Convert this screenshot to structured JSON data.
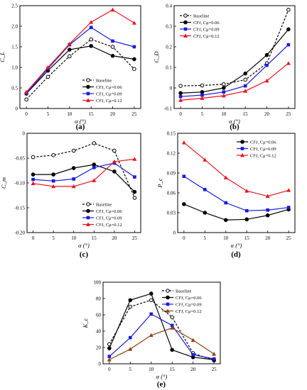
{
  "chart_data": [
    {
      "type": "line",
      "panel_label": "(a)",
      "xlabel": "α (°)",
      "ylabel": "C_L",
      "x": [
        0,
        5,
        10,
        15,
        20,
        25
      ],
      "xlim": [
        -1.5,
        26.5
      ],
      "ylim": [
        0,
        2.5
      ],
      "yticks": [
        "0",
        "0.5",
        "1.0",
        "1.5",
        "2.0",
        "2.5"
      ],
      "xticks": [
        "0",
        "5",
        "10",
        "15",
        "20",
        "25"
      ],
      "legend_position": "bottom-right",
      "series": [
        {
          "name": "Baseline",
          "values": [
            0.22,
            0.77,
            1.27,
            1.68,
            1.5,
            0.96
          ],
          "color": "#000000",
          "dashed": true,
          "marker": "circle-open"
        },
        {
          "name": "CFJ, Cμ=0.06",
          "values": [
            0.36,
            0.92,
            1.43,
            1.52,
            1.28,
            1.2
          ],
          "color": "#000000",
          "dashed": false,
          "marker": "circle"
        },
        {
          "name": "CFJ, Cμ=0.09",
          "values": [
            0.37,
            0.97,
            1.55,
            1.97,
            1.64,
            1.5
          ],
          "color": "#1a1adc",
          "dashed": false,
          "marker": "square"
        },
        {
          "name": "CFJ, Cμ=0.12",
          "values": [
            0.4,
            1.0,
            1.57,
            2.1,
            2.4,
            2.08
          ],
          "color": "#e8141e",
          "dashed": false,
          "marker": "triangle"
        }
      ]
    },
    {
      "type": "line",
      "panel_label": "(b)",
      "xlabel": "α (°)",
      "ylabel": "C_D",
      "x": [
        0,
        5,
        10,
        15,
        20,
        25
      ],
      "xlim": [
        -1.5,
        26.5
      ],
      "ylim": [
        -0.1,
        0.4
      ],
      "yticks": [
        "-0.1",
        "0",
        "0.1",
        "0.2",
        "0.3",
        "0.4"
      ],
      "xticks": [
        "0",
        "5",
        "10",
        "15",
        "20",
        "25"
      ],
      "legend_position": "top-left",
      "series": [
        {
          "name": "Baseline",
          "values": [
            0.01,
            0.012,
            0.018,
            0.04,
            0.12,
            0.38
          ],
          "color": "#000000",
          "dashed": true,
          "marker": "circle-open"
        },
        {
          "name": "CFJ, Cμ=0.06",
          "values": [
            -0.025,
            -0.02,
            0.0,
            0.07,
            0.16,
            0.285
          ],
          "color": "#000000",
          "dashed": false,
          "marker": "circle"
        },
        {
          "name": "CFJ, Cμ=0.09",
          "values": [
            -0.042,
            -0.035,
            -0.02,
            0.01,
            0.11,
            0.21
          ],
          "color": "#1a1adc",
          "dashed": false,
          "marker": "square"
        },
        {
          "name": "CFJ, Cμ=0.12",
          "values": [
            -0.06,
            -0.05,
            -0.038,
            -0.015,
            0.035,
            0.12
          ],
          "color": "#e8141e",
          "dashed": false,
          "marker": "triangle"
        }
      ]
    },
    {
      "type": "line",
      "panel_label": "(c)",
      "xlabel": "α (°)",
      "ylabel": "C_m",
      "x": [
        0,
        5,
        10,
        15,
        20,
        25
      ],
      "xlim": [
        -1.5,
        26.5
      ],
      "ylim": [
        -0.2,
        0
      ],
      "yticks": [
        "-0.20",
        "-0.15",
        "-0.10",
        "-0.05",
        "0"
      ],
      "xticks": [
        "0",
        "5",
        "10",
        "15",
        "20",
        "25"
      ],
      "legend_position": "bottom-right",
      "series": [
        {
          "name": "Baseline",
          "values": [
            -0.048,
            -0.044,
            -0.035,
            -0.02,
            -0.035,
            -0.13
          ],
          "color": "#000000",
          "dashed": true,
          "marker": "circle-open"
        },
        {
          "name": "CFJ, Cμ=0.06",
          "values": [
            -0.083,
            -0.083,
            -0.07,
            -0.063,
            -0.077,
            -0.118
          ],
          "color": "#000000",
          "dashed": false,
          "marker": "circle"
        },
        {
          "name": "CFJ, Cμ=0.09",
          "values": [
            -0.093,
            -0.096,
            -0.092,
            -0.069,
            -0.06,
            -0.088
          ],
          "color": "#1a1adc",
          "dashed": false,
          "marker": "square"
        },
        {
          "name": "CFJ, Cμ=0.12",
          "values": [
            -0.101,
            -0.107,
            -0.107,
            -0.095,
            -0.057,
            -0.052
          ],
          "color": "#e8141e",
          "dashed": false,
          "marker": "triangle"
        }
      ]
    },
    {
      "type": "line",
      "panel_label": "(d)",
      "xlabel": "α (°)",
      "ylabel": "P_c",
      "x": [
        0,
        5,
        10,
        15,
        20,
        25
      ],
      "xlim": [
        -1.5,
        26.5
      ],
      "ylim": [
        0,
        0.15
      ],
      "yticks": [
        "0",
        "0.03",
        "0.06",
        "0.09",
        "0.12",
        "0.15"
      ],
      "xticks": [
        "0",
        "5",
        "10",
        "15",
        "20",
        "25"
      ],
      "legend_position": "top-right",
      "series": [
        {
          "name": "CFJ, Cμ=0.06",
          "values": [
            0.043,
            0.03,
            0.019,
            0.02,
            0.026,
            0.035
          ],
          "color": "#000000",
          "dashed": false,
          "marker": "circle"
        },
        {
          "name": "CFJ, Cμ=0.09",
          "values": [
            0.085,
            0.065,
            0.045,
            0.033,
            0.034,
            0.038
          ],
          "color": "#1a1adc",
          "dashed": false,
          "marker": "square"
        },
        {
          "name": "CFJ, Cμ=0.12",
          "values": [
            0.136,
            0.11,
            0.083,
            0.063,
            0.055,
            0.064
          ],
          "color": "#e8141e",
          "dashed": false,
          "marker": "triangle"
        }
      ]
    },
    {
      "type": "line",
      "panel_label": "(e)",
      "xlabel": "α (°)",
      "ylabel": "K_c",
      "x": [
        0,
        5,
        10,
        15,
        20,
        25
      ],
      "xlim": [
        -1.5,
        26.5
      ],
      "ylim": [
        0,
        100
      ],
      "yticks": [
        "0",
        "20",
        "40",
        "60",
        "80",
        "100"
      ],
      "xticks": [
        "0",
        "5",
        "10",
        "15",
        "20",
        "25"
      ],
      "legend_position": "top-right",
      "series": [
        {
          "name": "Baseline",
          "values": [
            24,
            70,
            78,
            57,
            13,
            4
          ],
          "color": "#000000",
          "dashed": true,
          "marker": "circle-open"
        },
        {
          "name": "CFJ, Cμ=0.06",
          "values": [
            19,
            78,
            86,
            17,
            8,
            5
          ],
          "color": "#000000",
          "dashed": false,
          "marker": "circle"
        },
        {
          "name": "CFJ, Cμ=0.09",
          "values": [
            9,
            32,
            61,
            47,
            11,
            6
          ],
          "color": "#1a1adc",
          "dashed": false,
          "marker": "square"
        },
        {
          "name": "CFJ, Cμ=0.12",
          "values": [
            5,
            18,
            35,
            44,
            29,
            12
          ],
          "color": "#8b4513",
          "dashed": false,
          "marker": "triangle"
        }
      ]
    }
  ]
}
